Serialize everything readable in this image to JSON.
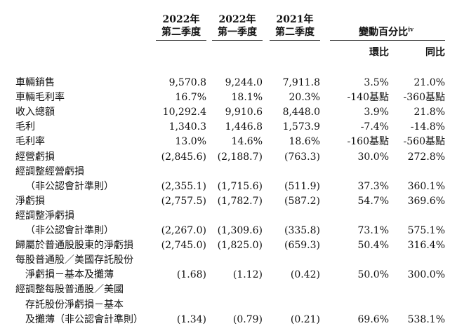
{
  "header": {
    "columns": [
      {
        "year": "2022年",
        "quarter": "第二季度"
      },
      {
        "year": "2022年",
        "quarter": "第一季度"
      },
      {
        "year": "2021年",
        "quarter": "第二季度"
      }
    ],
    "change_title": "變動百分比",
    "change_note": "iv",
    "qoq": "環比",
    "yoy": "同比"
  },
  "rows": [
    {
      "label": "車輛銷售",
      "v1": "9,570.8",
      "v2": "9,244.0",
      "v3": "7,911.8",
      "qoq": "3.5%",
      "yoy": "21.0%"
    },
    {
      "label": "車輛毛利率",
      "v1": "16.7%",
      "v2": "18.1%",
      "v3": "20.3%",
      "qoq": "-140基點",
      "yoy": "-360基點"
    },
    {
      "label": "收入總額",
      "v1": "10,292.4",
      "v2": "9,910.6",
      "v3": "8,448.0",
      "qoq": "3.9%",
      "yoy": "21.8%"
    },
    {
      "label": "毛利",
      "v1": "1,340.3",
      "v2": "1,446.8",
      "v3": "1,573.9",
      "qoq": "-7.4%",
      "yoy": "-14.8%"
    },
    {
      "label": "毛利率",
      "v1": "13.0%",
      "v2": "14.6%",
      "v3": "18.6%",
      "qoq": "-160基點",
      "yoy": "-560基點"
    },
    {
      "label": "經營虧損",
      "v1": "(2,845.6)",
      "v2": "(2,188.7)",
      "v3": "(763.3)",
      "qoq": "30.0%",
      "yoy": "272.8%"
    },
    {
      "label": "經調整經營虧損",
      "v1": "",
      "v2": "",
      "v3": "",
      "qoq": "",
      "yoy": ""
    },
    {
      "label": "（非公認會計準則）",
      "v1": "(2,355.1)",
      "v2": "(1,715.6)",
      "v3": "(511.9)",
      "qoq": "37.3%",
      "yoy": "360.1%"
    },
    {
      "label": "淨虧損",
      "v1": "(2,757.5)",
      "v2": "(1,782.7)",
      "v3": "(587.2)",
      "qoq": "54.7%",
      "yoy": "369.6%"
    },
    {
      "label": "經調整淨虧損",
      "v1": "",
      "v2": "",
      "v3": "",
      "qoq": "",
      "yoy": ""
    },
    {
      "label": "（非公認會計準則）",
      "v1": "(2,267.0)",
      "v2": "(1,309.6)",
      "v3": "(335.8)",
      "qoq": "73.1%",
      "yoy": "575.1%"
    },
    {
      "label": "歸屬於普通股股東的淨虧損",
      "v1": "(2,745.0)",
      "v2": "(1,825.0)",
      "v3": "(659.3)",
      "qoq": "50.4%",
      "yoy": "316.4%"
    },
    {
      "label": "每股普通股／美國存託股份",
      "v1": "",
      "v2": "",
      "v3": "",
      "qoq": "",
      "yoy": ""
    },
    {
      "label": "淨虧損－基本及攤薄",
      "v1": "(1.68)",
      "v2": "(1.12)",
      "v3": "(0.42)",
      "qoq": "50.0%",
      "yoy": "300.0%"
    },
    {
      "label": "經調整每股普通股／美國",
      "v1": "",
      "v2": "",
      "v3": "",
      "qoq": "",
      "yoy": ""
    },
    {
      "label": "存託股份淨虧損－基本",
      "v1": "",
      "v2": "",
      "v3": "",
      "qoq": "",
      "yoy": ""
    },
    {
      "label": "及攤薄（非公認會計準則）",
      "v1": "(1.34)",
      "v2": "(0.79)",
      "v3": "(0.21)",
      "qoq": "69.6%",
      "yoy": "538.1%"
    }
  ]
}
